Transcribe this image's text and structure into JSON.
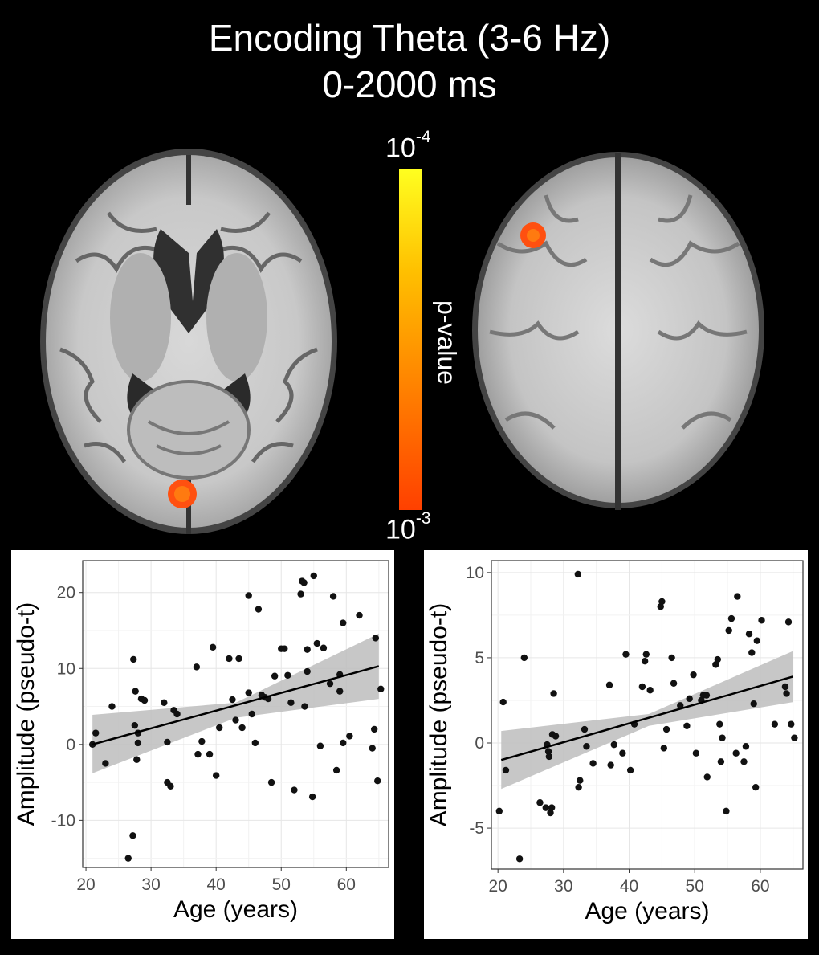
{
  "title_line1": "Encoding Theta (3-6 Hz)",
  "title_line2": "0-2000 ms",
  "colorbar": {
    "top_base": "10",
    "top_exp": "-4",
    "bottom_base": "10",
    "bottom_exp": "-3",
    "label": "p-value",
    "colors": [
      "#ffff20",
      "#ffc000",
      "#ff8000",
      "#ff4000"
    ]
  },
  "chart_data": [
    {
      "type": "scatter",
      "xlabel": "Age (years)",
      "ylabel": "Amplitude (pseudo-t)",
      "xlim": [
        19.5,
        66.5
      ],
      "ylim": [
        -16.2,
        24.2
      ],
      "xticks": [
        20,
        30,
        40,
        50,
        60
      ],
      "yticks": [
        -10,
        0,
        10,
        20
      ],
      "grid": true,
      "fit": {
        "x": [
          21,
          65
        ],
        "y": [
          0.0,
          10.3
        ],
        "ci_lower_x": [
          21,
          43,
          65
        ],
        "ci_lower": [
          -3.8,
          3.5,
          6.0
        ],
        "ci_upper": [
          3.9,
          5.5,
          14.6
        ]
      },
      "points": [
        [
          21,
          0
        ],
        [
          21.5,
          1.5
        ],
        [
          23,
          -2.5
        ],
        [
          24,
          5
        ],
        [
          26.5,
          -15
        ],
        [
          27.2,
          -12
        ],
        [
          27.3,
          11.2
        ],
        [
          27.5,
          2.5
        ],
        [
          27.6,
          7
        ],
        [
          27.8,
          -2
        ],
        [
          28,
          0.2
        ],
        [
          28,
          1.5
        ],
        [
          28.5,
          6
        ],
        [
          29,
          5.8
        ],
        [
          32,
          5.5
        ],
        [
          32.5,
          0.3
        ],
        [
          32.5,
          -5
        ],
        [
          33,
          -5.5
        ],
        [
          33.5,
          4.5
        ],
        [
          34,
          4
        ],
        [
          37,
          10.2
        ],
        [
          37.2,
          -1.3
        ],
        [
          37.8,
          0.4
        ],
        [
          39,
          -1.3
        ],
        [
          39.5,
          12.8
        ],
        [
          40,
          -4.1
        ],
        [
          40.5,
          2.2
        ],
        [
          42,
          11.3
        ],
        [
          42.5,
          5.9
        ],
        [
          43,
          3.2
        ],
        [
          43.5,
          11.3
        ],
        [
          44,
          2.2
        ],
        [
          45,
          6.8
        ],
        [
          45,
          19.6
        ],
        [
          45.5,
          4
        ],
        [
          46,
          0.2
        ],
        [
          46.5,
          17.8
        ],
        [
          47,
          6.5
        ],
        [
          47.5,
          6.2
        ],
        [
          48,
          6
        ],
        [
          48.5,
          -5
        ],
        [
          49,
          9
        ],
        [
          50,
          12.6
        ],
        [
          50.5,
          12.6
        ],
        [
          51,
          9.1
        ],
        [
          51.5,
          5.5
        ],
        [
          52,
          -6
        ],
        [
          53,
          19.8
        ],
        [
          53.2,
          21.5
        ],
        [
          53.5,
          21.3
        ],
        [
          53.6,
          5
        ],
        [
          54,
          12.5
        ],
        [
          54,
          9.6
        ],
        [
          54.8,
          -6.9
        ],
        [
          55,
          22.2
        ],
        [
          55.5,
          13.3
        ],
        [
          56,
          -0.2
        ],
        [
          56.5,
          12.7
        ],
        [
          57.5,
          8
        ],
        [
          58,
          19.5
        ],
        [
          58.5,
          -3.4
        ],
        [
          59,
          7
        ],
        [
          59,
          9.2
        ],
        [
          59.5,
          0.2
        ],
        [
          59.5,
          16
        ],
        [
          60.5,
          1.1
        ],
        [
          62,
          17
        ],
        [
          64,
          -0.5
        ],
        [
          64.3,
          2
        ],
        [
          64.5,
          14
        ],
        [
          64.8,
          -4.8
        ],
        [
          65.3,
          7.3
        ]
      ]
    },
    {
      "type": "scatter",
      "xlabel": "Age (years)",
      "ylabel": "Amplitude (pseudo-t)",
      "xlim": [
        19,
        66.5
      ],
      "ylim": [
        -7.4,
        10.7
      ],
      "xticks": [
        20,
        30,
        40,
        50,
        60
      ],
      "yticks": [
        -5,
        0,
        5,
        10
      ],
      "grid": true,
      "fit": {
        "x": [
          20.5,
          65
        ],
        "y": [
          -1.0,
          3.9
        ],
        "ci_lower_x": [
          20.5,
          43,
          65
        ],
        "ci_lower": [
          -2.7,
          1.0,
          2.4
        ],
        "ci_upper": [
          0.7,
          1.7,
          5.4
        ]
      },
      "points": [
        [
          20.2,
          -4
        ],
        [
          20.8,
          2.4
        ],
        [
          21.2,
          -1.6
        ],
        [
          23.3,
          -6.8
        ],
        [
          24,
          5
        ],
        [
          26.4,
          -3.5
        ],
        [
          27.3,
          -3.8
        ],
        [
          27.5,
          -0.1
        ],
        [
          27.7,
          -0.5
        ],
        [
          27.8,
          -0.8
        ],
        [
          28,
          -4.1
        ],
        [
          28.2,
          -3.8
        ],
        [
          28.3,
          0.5
        ],
        [
          28.5,
          2.9
        ],
        [
          28.8,
          0.4
        ],
        [
          32.2,
          9.9
        ],
        [
          32.3,
          -2.6
        ],
        [
          32.5,
          -2.2
        ],
        [
          33.2,
          0.8
        ],
        [
          33.5,
          -0.2
        ],
        [
          34.5,
          -1.2
        ],
        [
          37,
          3.4
        ],
        [
          37.2,
          -1.3
        ],
        [
          37.7,
          -0.1
        ],
        [
          39,
          -0.6
        ],
        [
          39.5,
          5.2
        ],
        [
          40.2,
          -1.6
        ],
        [
          40.8,
          1.1
        ],
        [
          42,
          3.3
        ],
        [
          42.4,
          4.8
        ],
        [
          42.6,
          5.2
        ],
        [
          43.2,
          3.1
        ],
        [
          44.8,
          8
        ],
        [
          45,
          8.3
        ],
        [
          45.3,
          -0.3
        ],
        [
          45.7,
          0.8
        ],
        [
          46.5,
          5
        ],
        [
          46.8,
          3.5
        ],
        [
          47.8,
          2.2
        ],
        [
          48.8,
          1
        ],
        [
          49.2,
          2.6
        ],
        [
          49.8,
          4
        ],
        [
          50.2,
          -0.6
        ],
        [
          51,
          2.5
        ],
        [
          51.3,
          2.8
        ],
        [
          51.8,
          2.8
        ],
        [
          51.9,
          -2
        ],
        [
          53.2,
          4.6
        ],
        [
          53.5,
          4.9
        ],
        [
          53.8,
          1.1
        ],
        [
          54,
          -1.1
        ],
        [
          54.2,
          0.3
        ],
        [
          54.8,
          -4
        ],
        [
          55.2,
          6.6
        ],
        [
          55.6,
          7.3
        ],
        [
          56.3,
          -0.6
        ],
        [
          56.5,
          8.6
        ],
        [
          57.5,
          -1.1
        ],
        [
          57.8,
          -0.2
        ],
        [
          58.3,
          6.4
        ],
        [
          58.7,
          5.3
        ],
        [
          59,
          2.3
        ],
        [
          59.3,
          -2.6
        ],
        [
          59.5,
          6
        ],
        [
          60.2,
          7.2
        ],
        [
          62.2,
          1.1
        ],
        [
          63.8,
          3.3
        ],
        [
          64,
          2.9
        ],
        [
          64.3,
          7.1
        ],
        [
          64.7,
          1.1
        ],
        [
          65.2,
          0.3
        ]
      ]
    }
  ]
}
